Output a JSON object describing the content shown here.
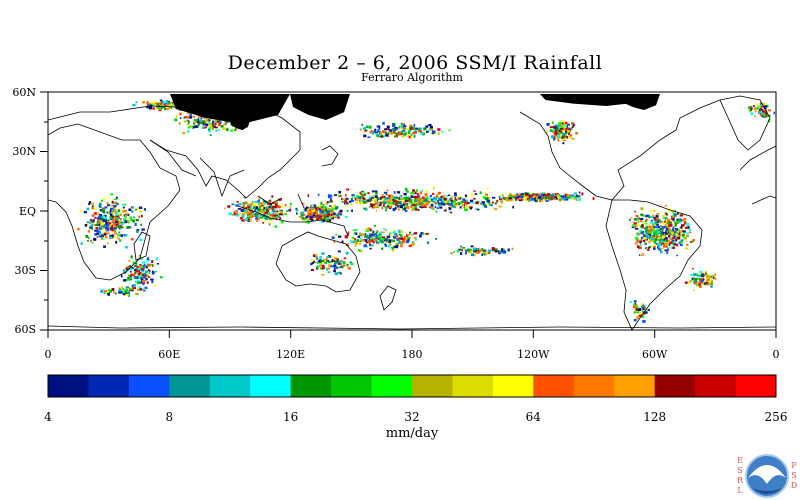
{
  "title": "December 2 – 6, 2006 SSM/I Rainfall",
  "subtitle": "Ferraro Algorithm",
  "map": {
    "lat_labels": [
      "60N",
      "30N",
      "EQ",
      "30S",
      "60S"
    ],
    "lon_labels": [
      "0",
      "60E",
      "120E",
      "180",
      "120W",
      "60W",
      "0"
    ],
    "lat_range": [
      -60,
      60
    ],
    "lon_range": [
      0,
      360
    ],
    "land_color": "#ffffff",
    "no_data_color": "#000000"
  },
  "colorbar": {
    "unit": "mm/day",
    "tick_labels": [
      "4",
      "8",
      "16",
      "32",
      "64",
      "128",
      "256"
    ],
    "colors": [
      "#000f80",
      "#0028b4",
      "#0a50ff",
      "#009696",
      "#00c8c8",
      "#00ffff",
      "#009600",
      "#00c800",
      "#00ff00",
      "#b4b400",
      "#dcdc00",
      "#ffff00",
      "#ff5000",
      "#ff7800",
      "#ffa000",
      "#960000",
      "#c80000",
      "#ff0000"
    ]
  },
  "logo": {
    "left_letters": "ESRL",
    "right_letters": "PSD",
    "badge_text": "NOAA"
  }
}
